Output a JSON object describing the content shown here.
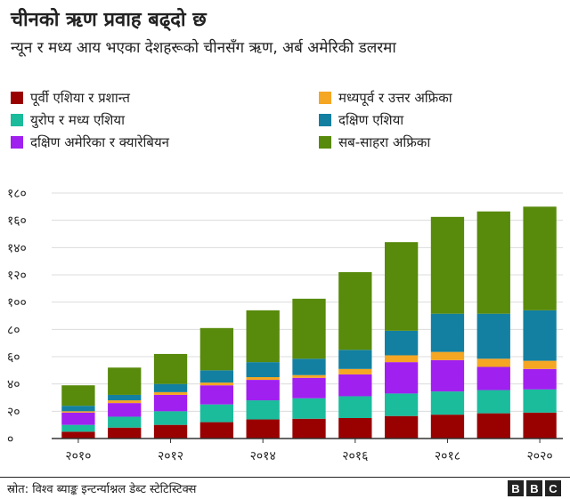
{
  "chart_data": {
    "type": "bar",
    "stacked": true,
    "title": "चीनको ऋण प्रवाह बढ्दो छ",
    "subtitle": "न्यून र मध्य आय भएका देशहरूको चीनसँग ऋण, अर्ब अमेरिकी डलरमा",
    "x": [
      2010,
      2011,
      2012,
      2013,
      2014,
      2015,
      2016,
      2017,
      2018,
      2019,
      2020
    ],
    "x_tick_labels": [
      "२०१०",
      "२०१२",
      "२०१४",
      "२०१६",
      "२०१८",
      "२०२०"
    ],
    "x_tick_years": [
      2010,
      2012,
      2014,
      2016,
      2018,
      2020
    ],
    "y_tick_labels": [
      "०",
      "२०",
      "४०",
      "६०",
      "८०",
      "१००",
      "१२०",
      "१४०",
      "१६०",
      "१८०"
    ],
    "y_ticks": [
      0,
      20,
      40,
      60,
      80,
      100,
      120,
      140,
      160,
      180
    ],
    "ylim": [
      0,
      180
    ],
    "grid": true,
    "legend_position": "top",
    "series": [
      {
        "name": "पूर्वी एशिया र प्रशान्त",
        "color": "#990000",
        "values": [
          5,
          8,
          10,
          12,
          14,
          14.5,
          15,
          16.5,
          17.5,
          18.5,
          19
        ]
      },
      {
        "name": "युरोप र मध्य एशिया",
        "color": "#1ABC9C",
        "values": [
          5,
          8,
          10,
          13,
          14,
          15,
          16,
          16.5,
          17,
          17,
          17
        ]
      },
      {
        "name": "दक्षिण अमेरिका र क्यारेबियन",
        "color": "#A020F0",
        "values": [
          9,
          10,
          12,
          14,
          15,
          15,
          16,
          23,
          23,
          17,
          15
        ]
      },
      {
        "name": "मध्यपूर्व र उत्तर अफ्रिका",
        "color": "#F5A623",
        "values": [
          1,
          2,
          2,
          2,
          2,
          2,
          4,
          5,
          6,
          6,
          6
        ]
      },
      {
        "name": "दक्षिण एशिया",
        "color": "#1380A1",
        "values": [
          4,
          4,
          6,
          9,
          11,
          12,
          14,
          18,
          28,
          33,
          37
        ]
      },
      {
        "name": "सब-साहरा अफ्रिका",
        "color": "#588A0B",
        "values": [
          15,
          20,
          22,
          31,
          38,
          44,
          57,
          65,
          71,
          75,
          76
        ]
      }
    ]
  },
  "legend_order": [
    0,
    3,
    1,
    4,
    2,
    5
  ],
  "footer": {
    "source": "स्रोत: विश्व ब्याङ्क इन्टर्न्याश्नल डेब्ट स्टेटिस्टिक्स"
  },
  "brand": {
    "letters": [
      "B",
      "B",
      "C"
    ]
  }
}
